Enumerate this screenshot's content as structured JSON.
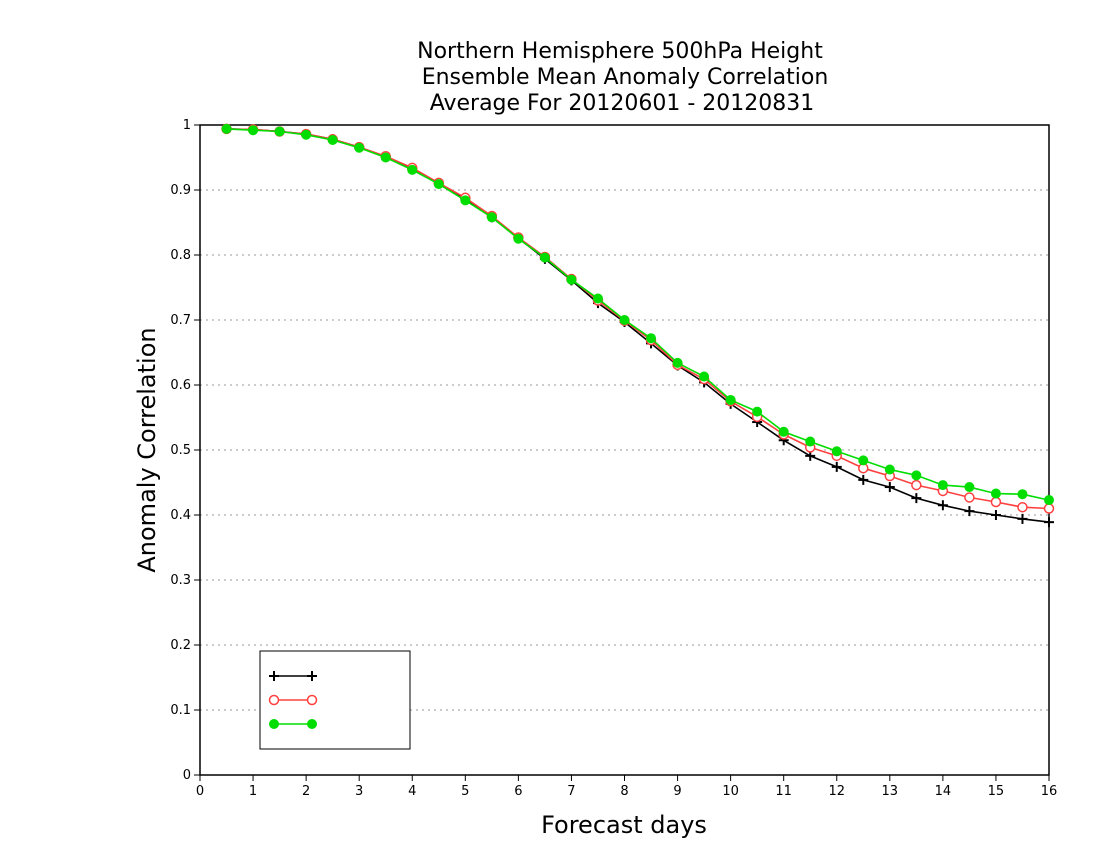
{
  "chart_data": {
    "type": "line",
    "title": [
      "Northern Hemisphere 500hPa Height",
      "Ensemble Mean Anomaly Correlation",
      "Average For 20120601 - 20120831"
    ],
    "xlabel": "Forecast days",
    "ylabel": "Anomaly Correlation",
    "xlim": [
      0,
      16
    ],
    "ylim": [
      0,
      1
    ],
    "xticks": [
      "0",
      "1",
      "2",
      "3",
      "4",
      "5",
      "6",
      "7",
      "8",
      "9",
      "10",
      "11",
      "12",
      "13",
      "14",
      "15",
      "16"
    ],
    "yticks": [
      "0",
      "0.1",
      "0.2",
      "0.3",
      "0.4",
      "0.5",
      "0.6",
      "0.7",
      "0.8",
      "0.9",
      "1"
    ],
    "grid": "horizontal dotted",
    "legend_position": "bottom-left",
    "x": [
      0.5,
      1,
      1.5,
      2,
      2.5,
      3,
      3.5,
      4,
      4.5,
      5,
      5.5,
      6,
      6.5,
      7,
      7.5,
      8,
      8.5,
      9,
      9.5,
      10,
      10.5,
      11,
      11.5,
      12,
      12.5,
      13,
      13.5,
      14,
      14.5,
      15,
      15.5,
      16
    ],
    "series": [
      {
        "name": "",
        "color": "#000000",
        "marker": "plus",
        "values": [
          0.994,
          0.993,
          0.99,
          0.986,
          0.978,
          0.966,
          0.951,
          0.932,
          0.91,
          0.887,
          0.858,
          0.826,
          0.794,
          0.761,
          0.726,
          0.697,
          0.664,
          0.63,
          0.604,
          0.571,
          0.543,
          0.515,
          0.491,
          0.474,
          0.454,
          0.443,
          0.426,
          0.415,
          0.406,
          0.4,
          0.394,
          0.389
        ]
      },
      {
        "name": "",
        "color": "#ff4040",
        "marker": "circle-open",
        "values": [
          0.994,
          0.993,
          0.99,
          0.986,
          0.978,
          0.966,
          0.952,
          0.934,
          0.911,
          0.888,
          0.86,
          0.827,
          0.797,
          0.763,
          0.73,
          0.699,
          0.669,
          0.631,
          0.609,
          0.575,
          0.551,
          0.524,
          0.504,
          0.491,
          0.472,
          0.46,
          0.446,
          0.437,
          0.427,
          0.42,
          0.412,
          0.41
        ]
      },
      {
        "name": "",
        "color": "#00dd00",
        "marker": "circle-filled",
        "values": [
          0.994,
          0.992,
          0.99,
          0.985,
          0.977,
          0.965,
          0.95,
          0.931,
          0.909,
          0.884,
          0.858,
          0.825,
          0.796,
          0.762,
          0.733,
          0.7,
          0.672,
          0.634,
          0.613,
          0.577,
          0.559,
          0.528,
          0.513,
          0.498,
          0.484,
          0.47,
          0.461,
          0.446,
          0.443,
          0.433,
          0.432,
          0.423
        ]
      }
    ]
  }
}
